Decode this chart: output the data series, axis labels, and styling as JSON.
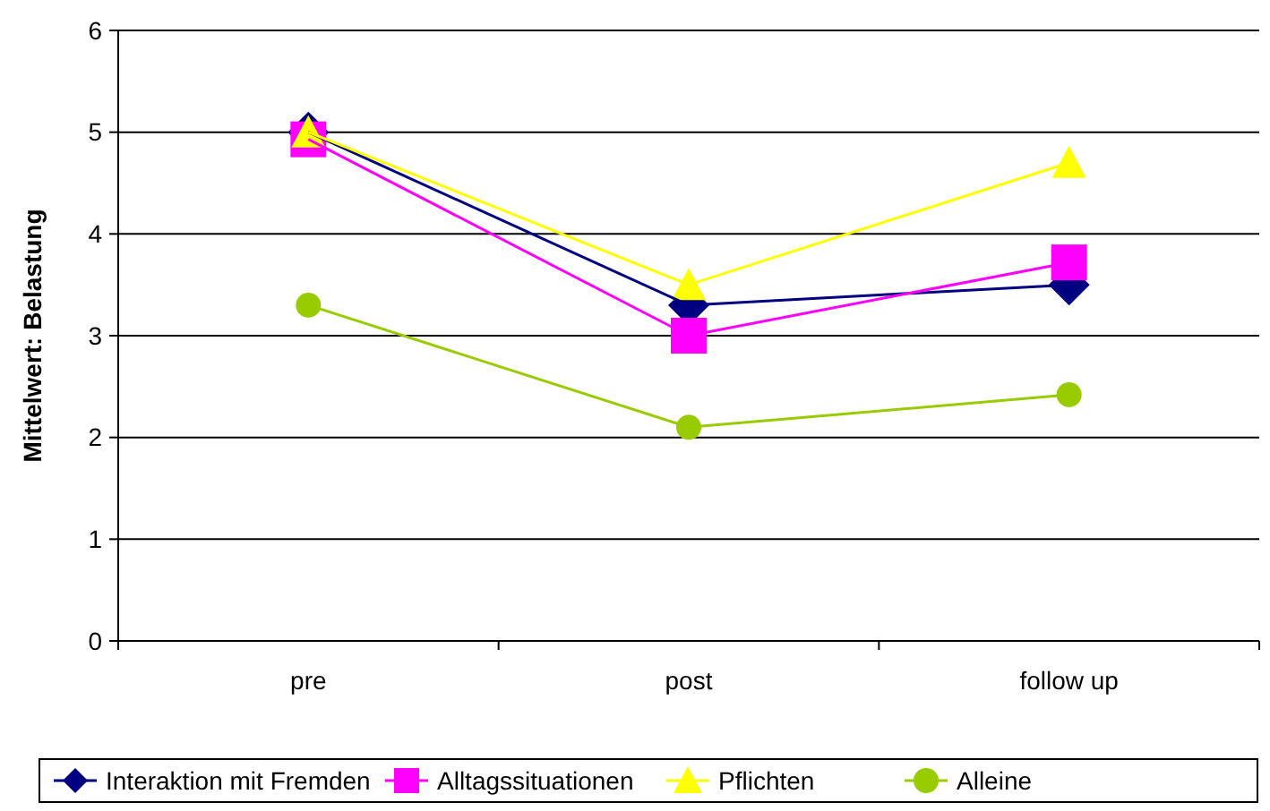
{
  "chart_data": {
    "type": "line",
    "ylabel": "Mittelwert: Belastung",
    "categories": [
      "pre",
      "post",
      "follow up"
    ],
    "ylim": [
      0,
      6
    ],
    "yticks": [
      0,
      1,
      2,
      3,
      4,
      5,
      6
    ],
    "grid": "y",
    "legend": "bottom",
    "series": [
      {
        "name": "Interaktion mit Fremden",
        "color": "#000080",
        "marker": "diamond",
        "values": [
          5.0,
          3.3,
          3.5
        ]
      },
      {
        "name": "Alltagssituationen",
        "color": "#ff00ff",
        "marker": "square",
        "values": [
          4.93,
          3.0,
          3.72
        ]
      },
      {
        "name": "Pflichten",
        "color": "#ffff00",
        "marker": "triangle",
        "values": [
          5.0,
          3.5,
          4.7
        ]
      },
      {
        "name": "Alleine",
        "color": "#99cc00",
        "marker": "circle",
        "values": [
          3.3,
          2.1,
          2.42
        ]
      }
    ]
  }
}
